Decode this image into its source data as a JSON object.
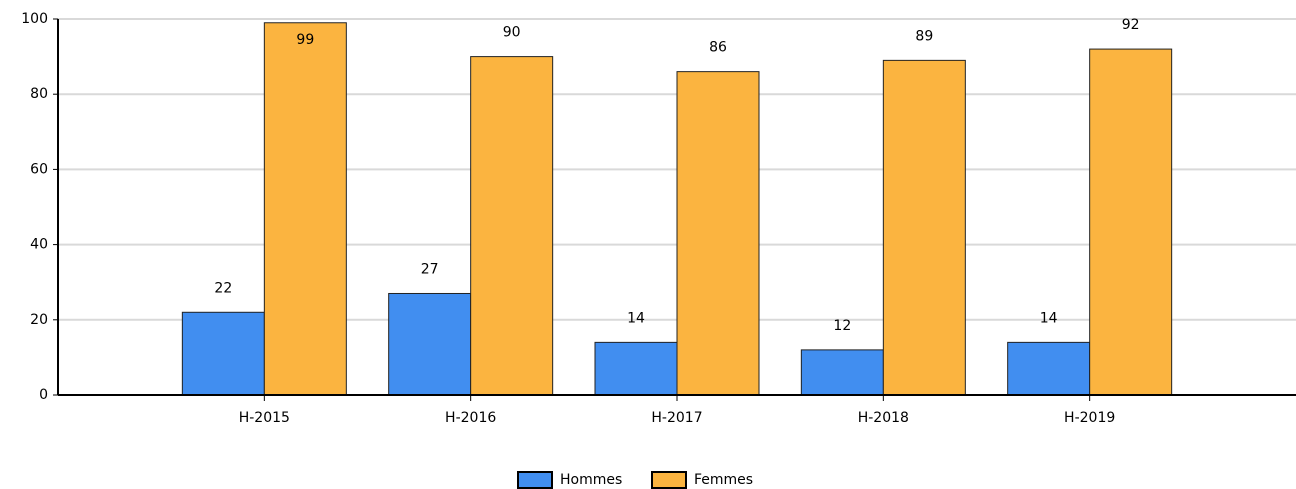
{
  "chart_data": {
    "type": "bar",
    "categories": [
      "H-2015",
      "H-2016",
      "H-2017",
      "H-2018",
      "H-2019"
    ],
    "series": [
      {
        "name": "Hommes",
        "color": "#418ef0",
        "values": [
          22,
          27,
          14,
          12,
          14
        ]
      },
      {
        "name": "Femmes",
        "color": "#fbb440",
        "values": [
          99,
          90,
          86,
          89,
          92
        ]
      }
    ],
    "ylim": [
      0,
      100
    ],
    "yticks": [
      0,
      20,
      40,
      60,
      80,
      100
    ],
    "grid": true,
    "legend": "bottom"
  }
}
